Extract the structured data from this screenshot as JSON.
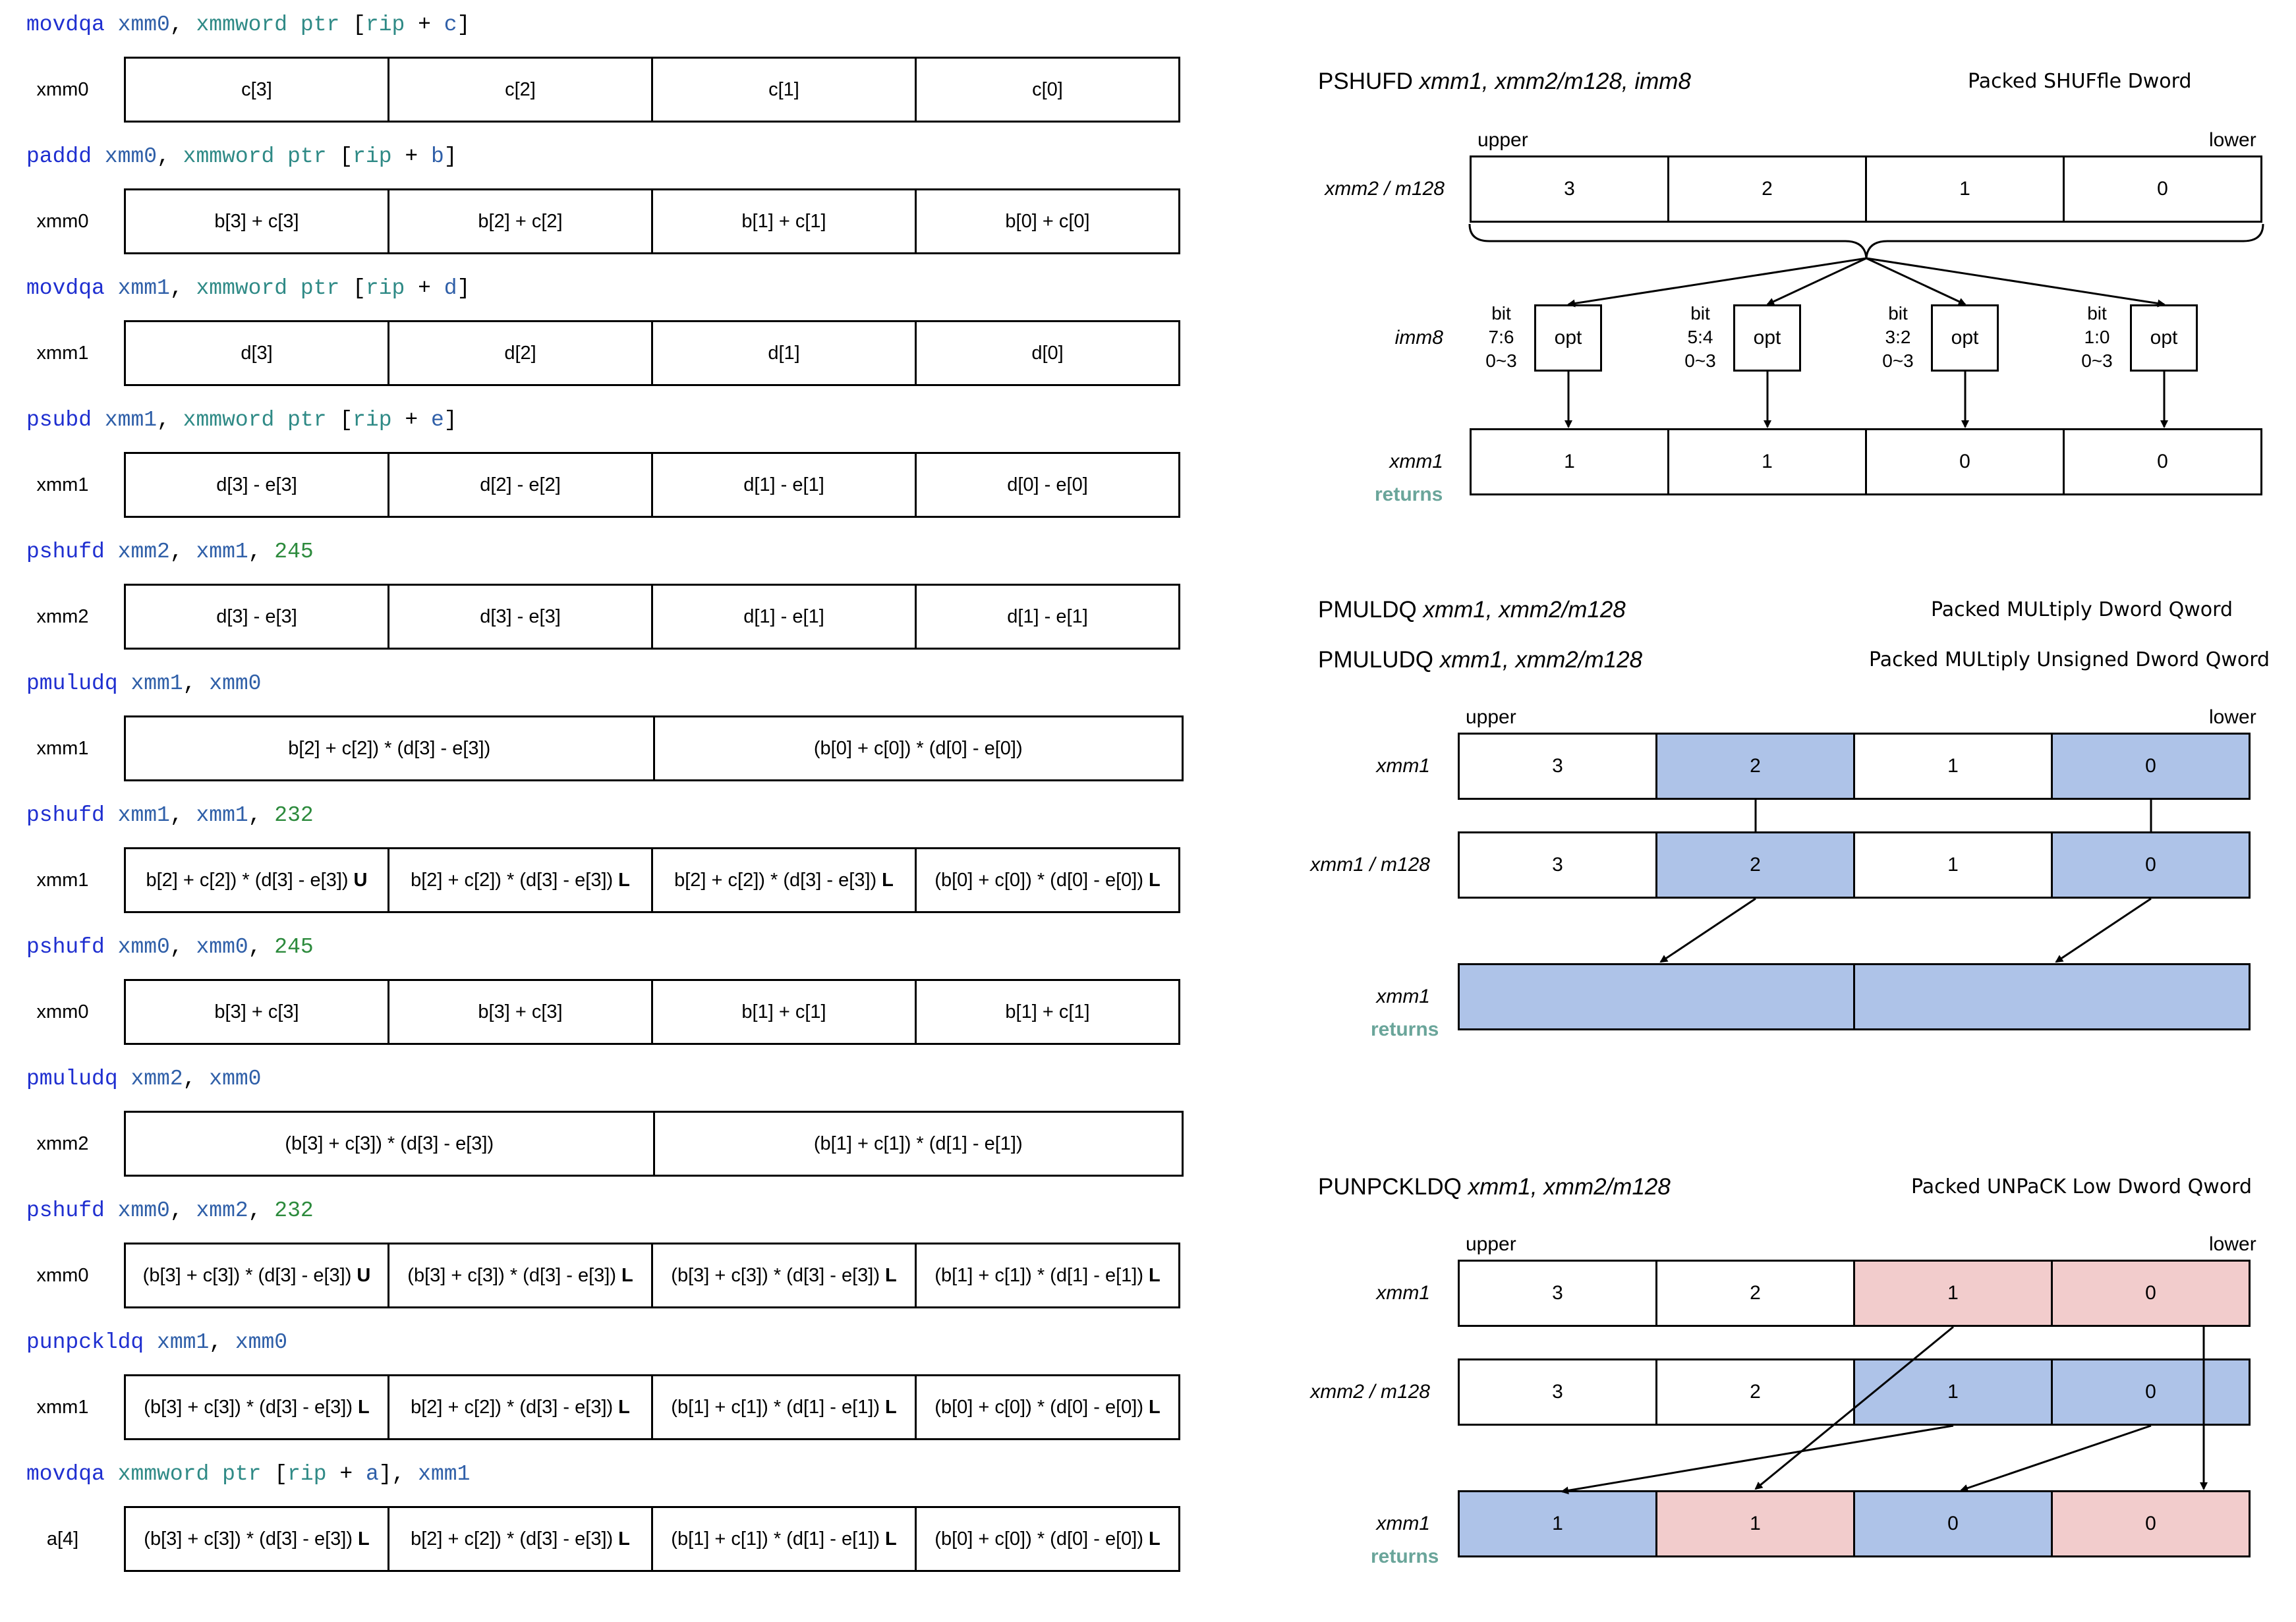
{
  "left": {
    "steps": [
      {
        "asm": [
          [
            "op",
            "movdqa"
          ],
          [
            "sp",
            " "
          ],
          [
            "reg",
            "xmm0"
          ],
          [
            "pun",
            ", "
          ],
          [
            "kw",
            "xmmword ptr "
          ],
          [
            "pun",
            "["
          ],
          [
            "kw",
            "rip"
          ],
          [
            "pun",
            " + "
          ],
          [
            "reg",
            "c"
          ],
          [
            "pun",
            "]"
          ]
        ],
        "reg": "xmm0",
        "cells": [
          {
            "t": "c[3]"
          },
          {
            "t": "c[2]"
          },
          {
            "t": "c[1]"
          },
          {
            "t": "c[0]"
          }
        ]
      },
      {
        "asm": [
          [
            "op",
            "paddd"
          ],
          [
            "sp",
            " "
          ],
          [
            "reg",
            "xmm0"
          ],
          [
            "pun",
            ", "
          ],
          [
            "kw",
            "xmmword ptr "
          ],
          [
            "pun",
            "["
          ],
          [
            "kw",
            "rip"
          ],
          [
            "pun",
            " + "
          ],
          [
            "reg",
            "b"
          ],
          [
            "pun",
            "]"
          ]
        ],
        "reg": "xmm0",
        "cells": [
          {
            "t": "b[3] + c[3]"
          },
          {
            "t": "b[2] + c[2]"
          },
          {
            "t": "b[1] + c[1]"
          },
          {
            "t": "b[0] + c[0]"
          }
        ]
      },
      {
        "asm": [
          [
            "op",
            "movdqa"
          ],
          [
            "sp",
            " "
          ],
          [
            "reg",
            "xmm1"
          ],
          [
            "pun",
            ", "
          ],
          [
            "kw",
            "xmmword ptr "
          ],
          [
            "pun",
            "["
          ],
          [
            "kw",
            "rip"
          ],
          [
            "pun",
            " + "
          ],
          [
            "reg",
            "d"
          ],
          [
            "pun",
            "]"
          ]
        ],
        "reg": "xmm1",
        "cells": [
          {
            "t": "d[3]"
          },
          {
            "t": "d[2]"
          },
          {
            "t": "d[1]"
          },
          {
            "t": "d[0]"
          }
        ]
      },
      {
        "asm": [
          [
            "op",
            "psubd"
          ],
          [
            "sp",
            " "
          ],
          [
            "reg",
            "xmm1"
          ],
          [
            "pun",
            ", "
          ],
          [
            "kw",
            "xmmword ptr "
          ],
          [
            "pun",
            "["
          ],
          [
            "kw",
            "rip"
          ],
          [
            "pun",
            " + "
          ],
          [
            "reg",
            "e"
          ],
          [
            "pun",
            "]"
          ]
        ],
        "reg": "xmm1",
        "cells": [
          {
            "t": "d[3] - e[3]"
          },
          {
            "t": "d[2] - e[2]"
          },
          {
            "t": "d[1] - e[1]"
          },
          {
            "t": "d[0] - e[0]"
          }
        ]
      },
      {
        "asm": [
          [
            "op",
            "pshufd"
          ],
          [
            "sp",
            " "
          ],
          [
            "reg",
            "xmm2"
          ],
          [
            "pun",
            ", "
          ],
          [
            "reg",
            "xmm1"
          ],
          [
            "pun",
            ", "
          ],
          [
            "num",
            "245"
          ]
        ],
        "reg": "xmm2",
        "cells": [
          {
            "t": "d[3] - e[3]"
          },
          {
            "t": "d[3] - e[3]"
          },
          {
            "t": "d[1] - e[1]"
          },
          {
            "t": "d[1] - e[1]"
          }
        ]
      },
      {
        "asm": [
          [
            "op",
            "pmuludq"
          ],
          [
            "sp",
            " "
          ],
          [
            "reg",
            "xmm1"
          ],
          [
            "pun",
            ", "
          ],
          [
            "reg",
            "xmm0"
          ]
        ],
        "reg": "xmm1",
        "cells": [
          {
            "t": "b[2] + c[2]) * (d[3] - e[3])",
            "wide": true
          },
          {
            "t": "(b[0] + c[0]) * (d[0] - e[0])",
            "wide": true
          }
        ]
      },
      {
        "asm": [
          [
            "op",
            "pshufd"
          ],
          [
            "sp",
            " "
          ],
          [
            "reg",
            "xmm1"
          ],
          [
            "pun",
            ", "
          ],
          [
            "reg",
            "xmm1"
          ],
          [
            "pun",
            ", "
          ],
          [
            "num",
            "232"
          ]
        ],
        "reg": "xmm1",
        "cells": [
          {
            "t": "b[2] + c[2]) * (d[3] - e[3])",
            "b": "U"
          },
          {
            "t": "b[2] + c[2]) * (d[3] - e[3])",
            "b": "L"
          },
          {
            "t": "b[2] + c[2]) * (d[3] - e[3])",
            "b": "L"
          },
          {
            "t": "(b[0] + c[0]) * (d[0] - e[0])",
            "b": "L"
          }
        ]
      },
      {
        "asm": [
          [
            "op",
            "pshufd"
          ],
          [
            "sp",
            " "
          ],
          [
            "reg",
            "xmm0"
          ],
          [
            "pun",
            ", "
          ],
          [
            "reg",
            "xmm0"
          ],
          [
            "pun",
            ", "
          ],
          [
            "num",
            "245"
          ]
        ],
        "reg": "xmm0",
        "cells": [
          {
            "t": "b[3] + c[3]"
          },
          {
            "t": "b[3] + c[3]"
          },
          {
            "t": "b[1] + c[1]"
          },
          {
            "t": "b[1] + c[1]"
          }
        ]
      },
      {
        "asm": [
          [
            "op",
            "pmuludq"
          ],
          [
            "sp",
            " "
          ],
          [
            "reg",
            "xmm2"
          ],
          [
            "pun",
            ", "
          ],
          [
            "reg",
            "xmm0"
          ]
        ],
        "reg": "xmm2",
        "cells": [
          {
            "t": "(b[3] + c[3]) * (d[3] - e[3])",
            "wide": true
          },
          {
            "t": "(b[1] + c[1]) * (d[1] - e[1])",
            "wide": true
          }
        ]
      },
      {
        "asm": [
          [
            "op",
            "pshufd"
          ],
          [
            "sp",
            " "
          ],
          [
            "reg",
            "xmm0"
          ],
          [
            "pun",
            ", "
          ],
          [
            "reg",
            "xmm2"
          ],
          [
            "pun",
            ", "
          ],
          [
            "num",
            "232"
          ]
        ],
        "reg": "xmm0",
        "cells": [
          {
            "t": "(b[3] + c[3]) * (d[3] - e[3])",
            "b": "U"
          },
          {
            "t": "(b[3] + c[3]) * (d[3] - e[3])",
            "b": "L"
          },
          {
            "t": "(b[3] + c[3]) * (d[3] - e[3])",
            "b": "L"
          },
          {
            "t": "(b[1] + c[1]) * (d[1] - e[1])",
            "b": "L"
          }
        ]
      },
      {
        "asm": [
          [
            "op",
            "punpckldq"
          ],
          [
            "sp",
            " "
          ],
          [
            "reg",
            "xmm1"
          ],
          [
            "pun",
            ", "
          ],
          [
            "reg",
            "xmm0"
          ]
        ],
        "reg": "xmm1",
        "cells": [
          {
            "t": "(b[3] + c[3]) * (d[3] - e[3])",
            "b": "L"
          },
          {
            "t": "b[2] + c[2]) * (d[3] - e[3])",
            "b": "L"
          },
          {
            "t": "(b[1] + c[1]) * (d[1] - e[1])",
            "b": "L"
          },
          {
            "t": "(b[0] + c[0]) * (d[0] - e[0])",
            "b": "L"
          }
        ]
      },
      {
        "asm": [
          [
            "op",
            "movdqa"
          ],
          [
            "sp",
            " "
          ],
          [
            "kw",
            "xmmword ptr "
          ],
          [
            "pun",
            "["
          ],
          [
            "kw",
            "rip"
          ],
          [
            "pun",
            " + "
          ],
          [
            "reg",
            "a"
          ],
          [
            "pun",
            "], "
          ],
          [
            "reg",
            "xmm1"
          ]
        ],
        "reg": "a[4]",
        "cells": [
          {
            "t": "(b[3] + c[3]) * (d[3] - e[3])",
            "b": "L"
          },
          {
            "t": "b[2] + c[2]) * (d[3] - e[3])",
            "b": "L"
          },
          {
            "t": "(b[1] + c[1]) * (d[1] - e[1])",
            "b": "L"
          },
          {
            "t": "(b[0] + c[0]) * (d[0] - e[0])",
            "b": "L"
          }
        ]
      }
    ]
  },
  "pshufd": {
    "title_op": "PSHUFD",
    "title_args": "xmm1, xmm2/m128, imm8",
    "desc": "Packed SHUFfle Dword",
    "upper": "upper",
    "lower": "lower",
    "src_label": "xmm2 / m128",
    "src_cells": [
      "3",
      "2",
      "1",
      "0"
    ],
    "imm_label": "imm8",
    "bits": [
      {
        "bit": "bit",
        "range": "7:6",
        "sel": "0~3",
        "opt": "opt"
      },
      {
        "bit": "bit",
        "range": "5:4",
        "sel": "0~3",
        "opt": "opt"
      },
      {
        "bit": "bit",
        "range": "3:2",
        "sel": "0~3",
        "opt": "opt"
      },
      {
        "bit": "bit",
        "range": "1:0",
        "sel": "0~3",
        "opt": "opt"
      }
    ],
    "dst_label": "xmm1",
    "returns": "returns",
    "dst_cells": [
      "1",
      "1",
      "0",
      "0"
    ]
  },
  "pmuludq": {
    "title1_op": "PMULDQ",
    "title1_args": "xmm1, xmm2/m128",
    "desc1": "Packed MULtiply Dword Qword",
    "title2_op": "PMULUDQ",
    "title2_args": "xmm1, xmm2/m128",
    "desc2": "Packed MULtiply Unsigned Dword Qword",
    "upper": "upper",
    "lower": "lower",
    "row1_label": "xmm1",
    "row1_cells": [
      "3",
      "2",
      "1",
      "0"
    ],
    "row2_label": "xmm1 / m128",
    "row2_cells": [
      "3",
      "2",
      "1",
      "0"
    ],
    "dst_label": "xmm1",
    "returns": "returns",
    "colors": {
      "highlight": "#aec3e8"
    }
  },
  "punpckldq": {
    "title_op": "PUNPCKLDQ",
    "title_args": "xmm1, xmm2/m128",
    "desc": "Packed UNPaCK Low Dword Qword",
    "upper": "upper",
    "lower": "lower",
    "row1_label": "xmm1",
    "row1_cells": [
      "3",
      "2",
      "1",
      "0"
    ],
    "row2_label": "xmm2 / m128",
    "row2_cells": [
      "3",
      "2",
      "1",
      "0"
    ],
    "dst_label": "xmm1",
    "returns": "returns",
    "dst_cells": [
      "1",
      "1",
      "0",
      "0"
    ],
    "colors": {
      "blue": "#aec3e8",
      "pink": "#f2cccc"
    }
  }
}
